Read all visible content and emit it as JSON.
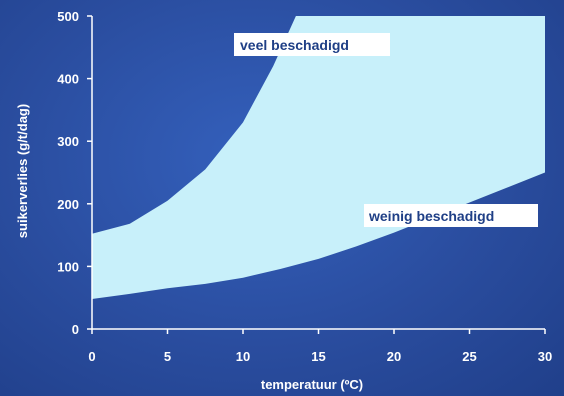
{
  "chart_data": {
    "type": "area",
    "title": "",
    "xlabel": "temperatuur (ºC)",
    "ylabel": "suikerverlies (g/t/dag)",
    "xlim": [
      0,
      30
    ],
    "ylim": [
      0,
      500
    ],
    "x_ticks": [
      0,
      5,
      10,
      15,
      20,
      25,
      30
    ],
    "y_ticks": [
      0,
      100,
      200,
      300,
      400,
      500
    ],
    "grid": false,
    "colors": {
      "background": "#2b4fa5",
      "band": "#c8f0fa",
      "label_box": "#ffffff",
      "text": "#ffffff"
    },
    "series": [
      {
        "name": "veel beschadigd",
        "x": [
          0,
          2.5,
          5,
          7.5,
          10,
          12,
          13.5,
          30
        ],
        "values": [
          152,
          168,
          205,
          255,
          330,
          420,
          500,
          500
        ]
      },
      {
        "name": "weinig beschadigd",
        "x": [
          0,
          2.5,
          5,
          7.5,
          10,
          12.5,
          15,
          17.5,
          20,
          22.5,
          25,
          27.5,
          30
        ],
        "values": [
          48,
          56,
          65,
          72,
          82,
          96,
          112,
          132,
          154,
          178,
          202,
          226,
          250
        ]
      }
    ],
    "annotations": [
      "veel beschadigd",
      "weinig beschadigd"
    ]
  }
}
